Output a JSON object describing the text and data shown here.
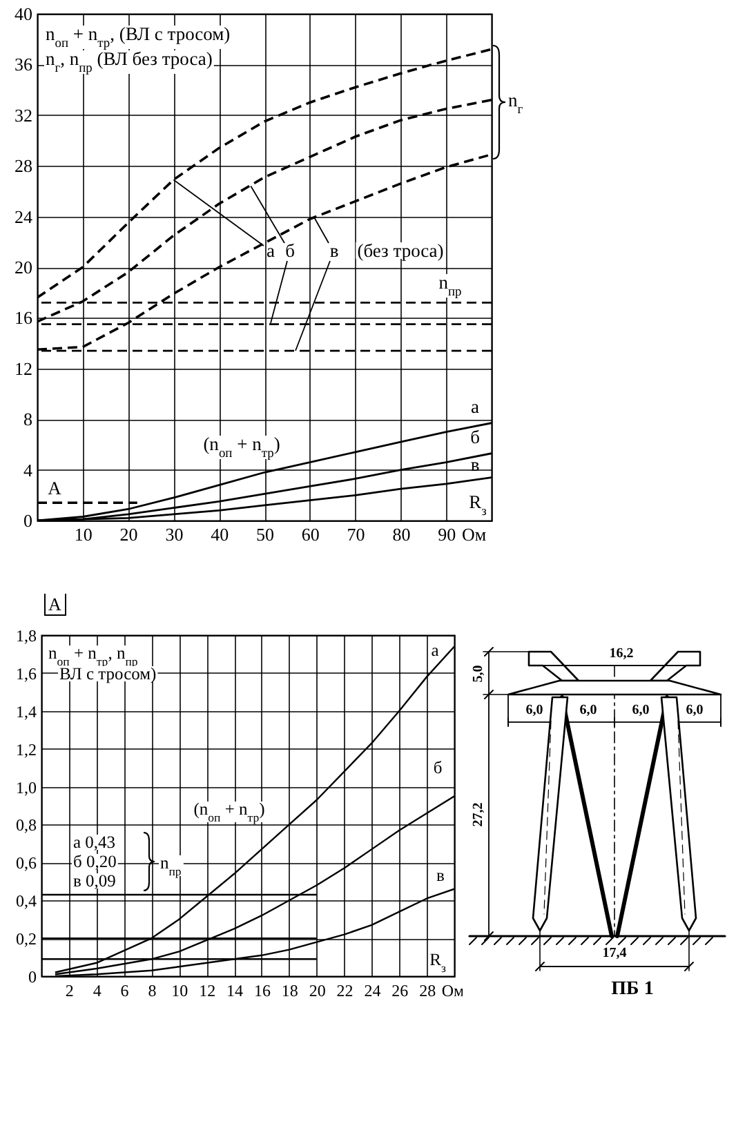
{
  "chart_data": [
    {
      "type": "line",
      "xlabel": "Ом",
      "x": [
        0,
        10,
        20,
        30,
        40,
        50,
        60,
        70,
        80,
        90,
        100
      ],
      "series": [
        {
          "color": "#000000",
          "line_style": "dashed",
          "values": [
            17.6,
            20.0,
            23.5,
            26.9,
            29.4,
            31.5,
            33.0,
            34.2,
            35.3,
            36.3,
            37.2
          ]
        },
        {
          "color": "#000000",
          "line_style": "dashed",
          "values": [
            15.7,
            17.3,
            19.6,
            22.5,
            25.0,
            27.1,
            28.7,
            30.3,
            31.6,
            32.5,
            33.2
          ]
        },
        {
          "color": "#000000",
          "line_style": "dashed",
          "values": [
            13.5,
            13.7,
            15.6,
            17.9,
            20.0,
            21.9,
            23.8,
            25.2,
            26.6,
            27.9,
            28.9
          ]
        },
        {
          "color": "#000000",
          "line_style": "solid",
          "values": [
            0,
            0.3,
            0.9,
            1.8,
            2.8,
            3.8,
            4.6,
            5.4,
            6.2,
            7.0,
            7.7
          ]
        },
        {
          "color": "#000000",
          "line_style": "solid",
          "values": [
            0,
            0.1,
            0.5,
            1.0,
            1.5,
            2.1,
            2.7,
            3.3,
            4.0,
            4.6,
            5.3
          ]
        },
        {
          "color": "#000000",
          "line_style": "solid",
          "values": [
            0,
            0.1,
            0.2,
            0.5,
            0.8,
            1.2,
            1.6,
            2.0,
            2.5,
            2.9,
            3.4
          ]
        },
        {
          "color": "#000000",
          "line_style": "dashed",
          "x": [
            0,
            22
          ],
          "values": [
            1.4,
            1.4
          ]
        }
      ],
      "ref_lines": [
        {
          "axis": "y",
          "value": 17.2,
          "line_style": "dashed"
        },
        {
          "axis": "y",
          "value": 15.5,
          "line_style": "dashed"
        },
        {
          "axis": "y",
          "value": 13.4,
          "line_style": "dashed"
        }
      ],
      "xlim": [
        0,
        100
      ],
      "ylim": [
        0,
        40
      ],
      "xticks": [
        10,
        20,
        30,
        40,
        50,
        60,
        70,
        80,
        90
      ],
      "yticks": [
        0,
        4,
        8,
        12,
        16,
        20,
        24,
        28,
        32,
        36,
        40
      ],
      "grid": true,
      "annotations": [
        "n$_{оп}$ + n$_{тр}$, (ВЛ с тросом)",
        "n$_{г}$, n$_{пр}$ (ВЛ без троса)",
        {
          "text": "а",
          "x": 30,
          "y": 26.9
        },
        {
          "text": "б",
          "x": 47,
          "y": 26.4
        },
        {
          "text": "в",
          "x": 61,
          "y": 23.9
        },
        "(без троса)",
        "n$_{пр}$",
        "n$_{г}$",
        "(n$_{оп}$ + n$_{тр}$)",
        "а",
        "б",
        "в",
        "R$_{з}$",
        "A"
      ]
    },
    {
      "type": "line",
      "title": "A",
      "xlabel": "Ом",
      "line_style": "solid",
      "x": [
        1,
        4,
        8,
        10,
        12,
        14,
        16,
        18,
        20,
        22,
        24,
        26,
        28,
        30
      ],
      "series": [
        {
          "color": "#000000",
          "values": [
            0.02,
            0.07,
            0.2,
            0.3,
            0.42,
            0.54,
            0.67,
            0.8,
            0.93,
            1.08,
            1.23,
            1.4,
            1.58,
            1.74
          ]
        },
        {
          "color": "#000000",
          "values": [
            0.01,
            0.04,
            0.09,
            0.13,
            0.19,
            0.25,
            0.32,
            0.4,
            0.48,
            0.57,
            0.67,
            0.77,
            0.86,
            0.95
          ]
        },
        {
          "color": "#000000",
          "values": [
            0,
            0.01,
            0.03,
            0.05,
            0.07,
            0.09,
            0.11,
            0.14,
            0.18,
            0.22,
            0.27,
            0.34,
            0.41,
            0.46
          ]
        },
        {
          "color": "#000000",
          "x": [
            0,
            20
          ],
          "values": [
            0.43,
            0.43
          ]
        },
        {
          "color": "#000000",
          "x": [
            0,
            20
          ],
          "values": [
            0.2,
            0.2
          ]
        },
        {
          "color": "#000000",
          "x": [
            0,
            20
          ],
          "values": [
            0.09,
            0.09
          ]
        }
      ],
      "xlim": [
        0,
        30
      ],
      "ylim": [
        0,
        1.8
      ],
      "xticks": [
        2,
        4,
        6,
        8,
        10,
        12,
        14,
        16,
        18,
        20,
        22,
        24,
        26,
        28
      ],
      "yticks": [
        {
          "value": 0,
          "label": "0"
        },
        {
          "value": 0.2,
          "label": "0,2"
        },
        {
          "value": 0.4,
          "label": "0,4"
        },
        {
          "value": 0.6,
          "label": "0,6"
        },
        {
          "value": 0.8,
          "label": "0,8"
        },
        {
          "value": 1,
          "label": "1,0"
        },
        {
          "value": 1.2,
          "label": "1,2"
        },
        {
          "value": 1.4,
          "label": "1,4"
        },
        {
          "value": 1.6,
          "label": "1,6"
        },
        {
          "value": 1.8,
          "label": "1,8"
        }
      ],
      "grid": true,
      "annotations": [
        "n$_{оп}$ + n$_{тр}$, n$_{пр}$",
        "ВЛ с тросом)",
        "а 0,43",
        "б 0,20",
        "в 0,09",
        "n$_{пр}$",
        "(n$_{оп}$ + n$_{тр}$)",
        "а",
        "б",
        "в",
        "R$_{з}$"
      ]
    },
    {
      "type": "other",
      "title": "ПБ 1",
      "annotations": [
        "16,2",
        "5,0",
        "6,0",
        "6,0",
        "6,0",
        "6,0",
        "27,2",
        "17,4"
      ]
    }
  ]
}
